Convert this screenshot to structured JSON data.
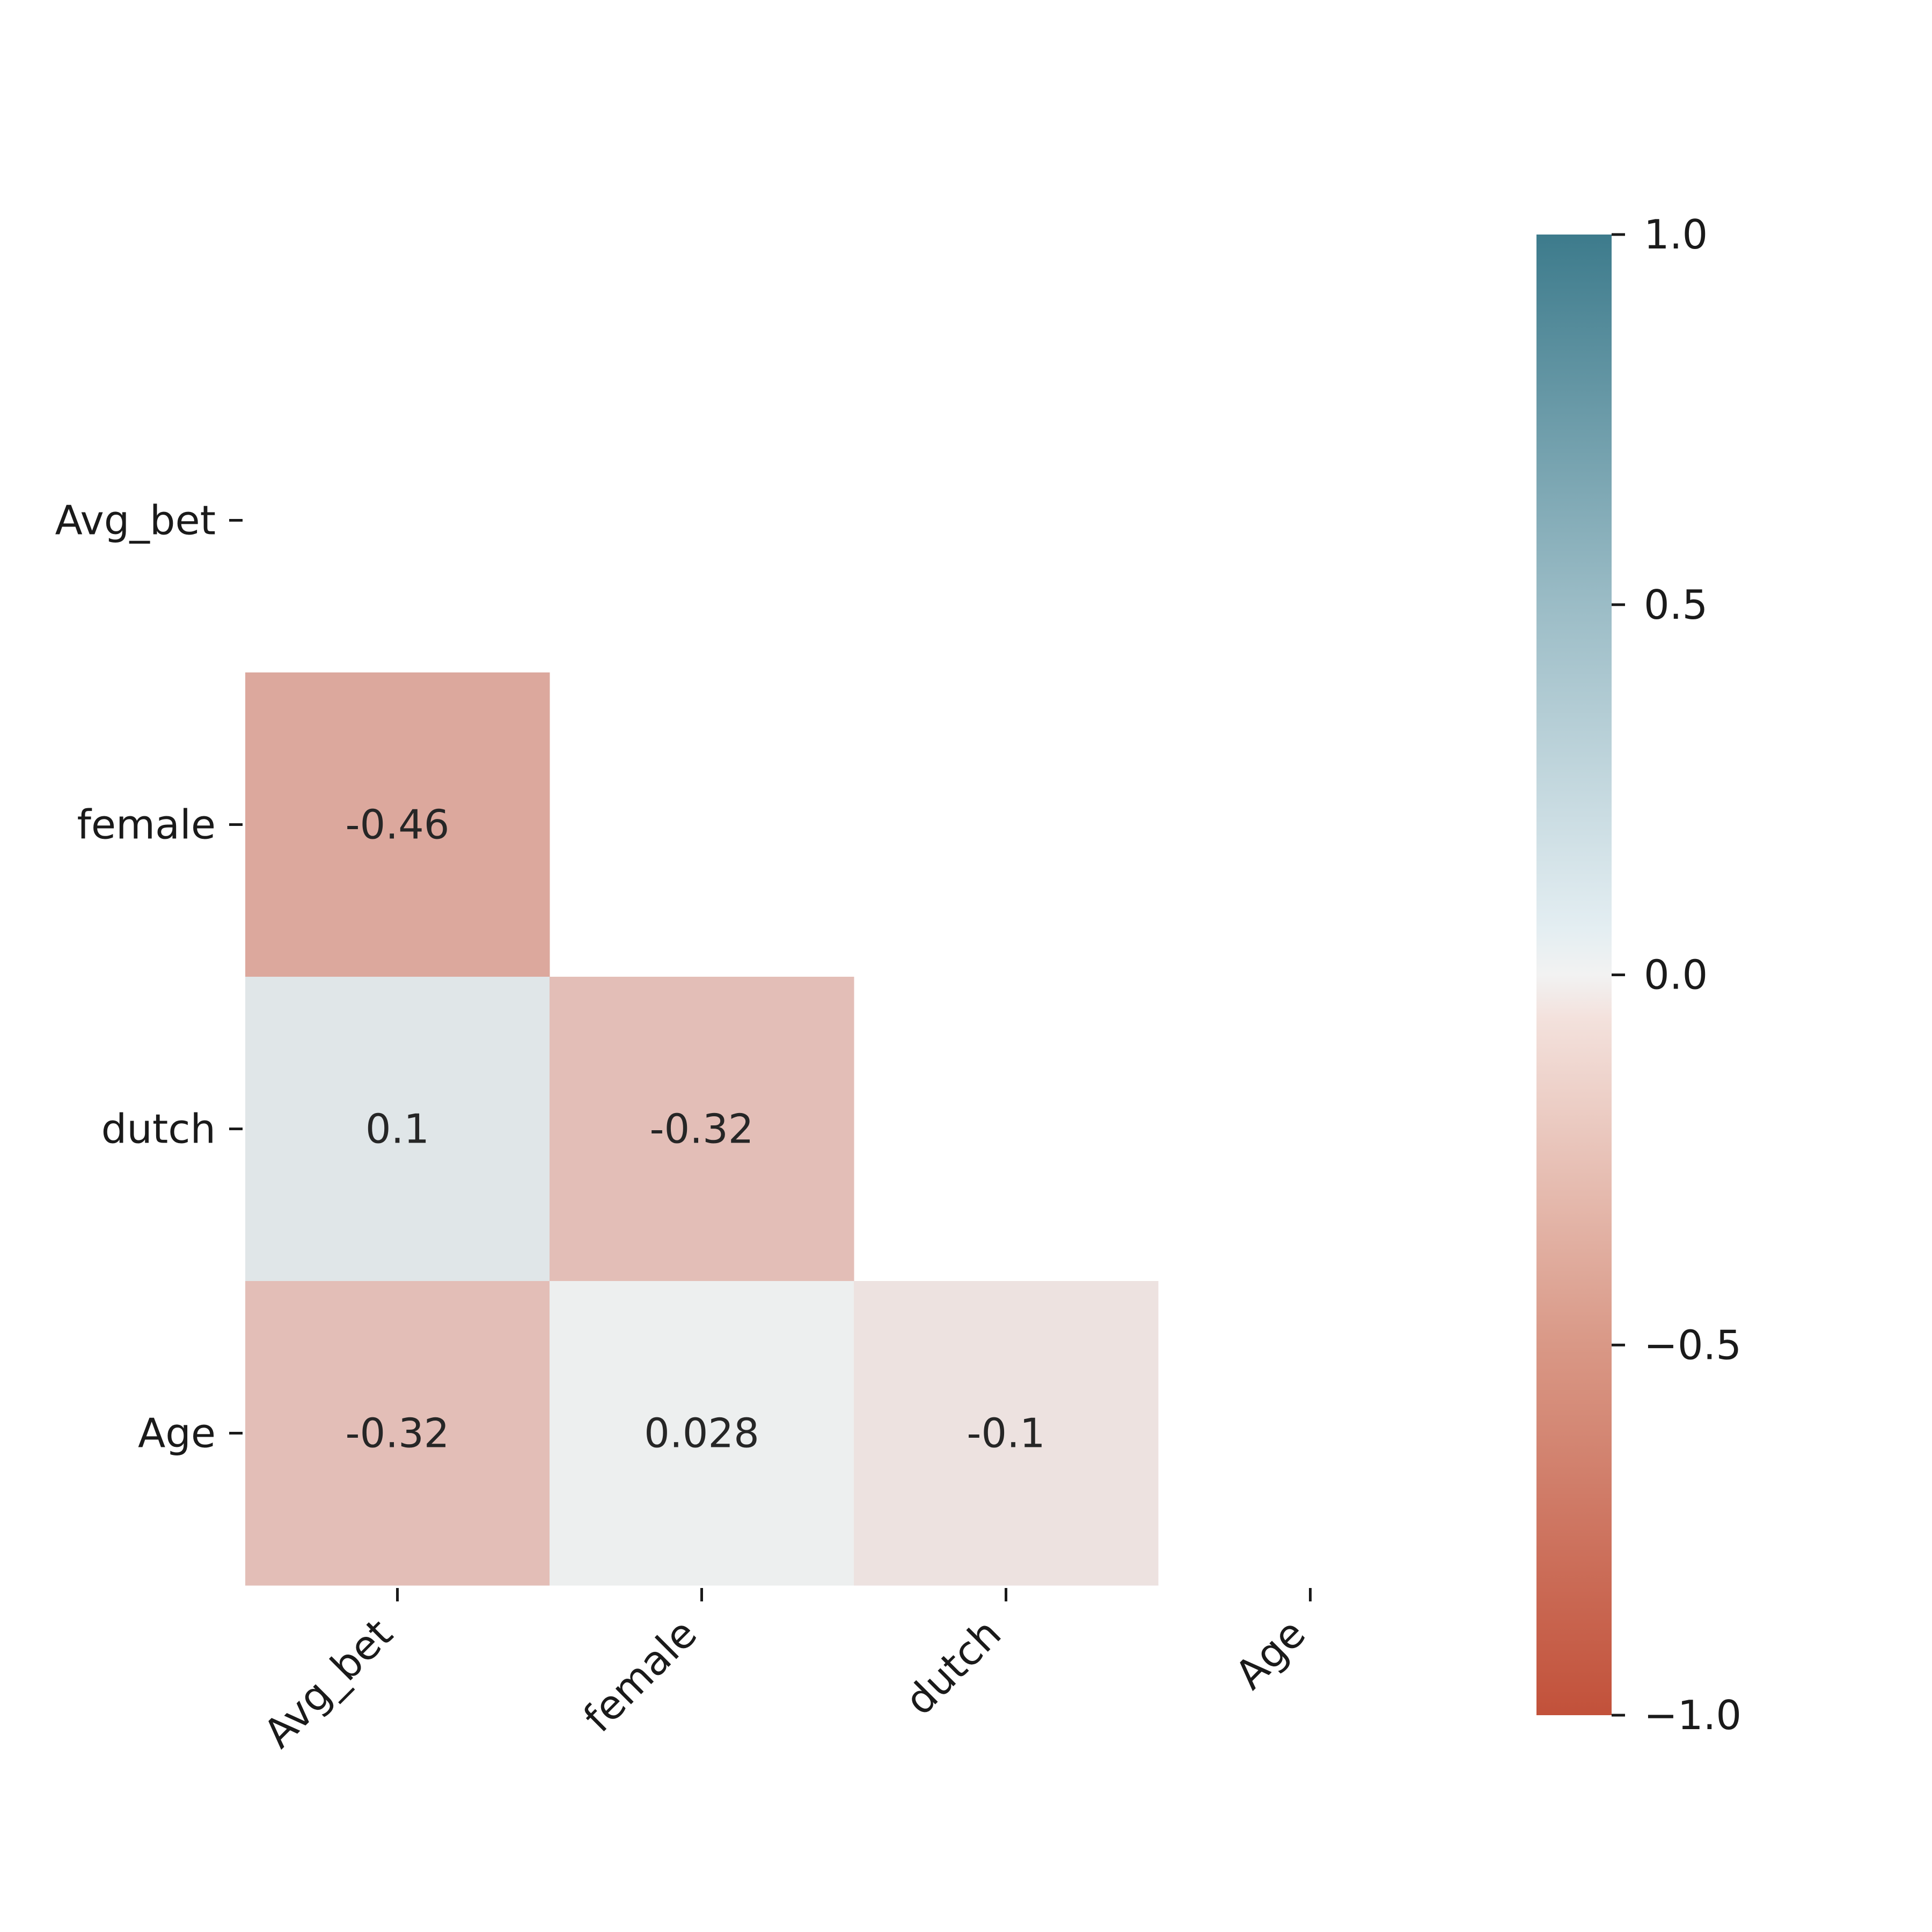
{
  "chart_data": {
    "type": "heatmap",
    "variables": [
      "Avg_bet",
      "female",
      "dutch",
      "Age"
    ],
    "mask": "upper-triangle-including-diagonal",
    "cells": [
      {
        "row": "female",
        "col": "Avg_bet",
        "value": -0.46,
        "label": "-0.46"
      },
      {
        "row": "dutch",
        "col": "Avg_bet",
        "value": 0.1,
        "label": "0.1"
      },
      {
        "row": "dutch",
        "col": "female",
        "value": -0.32,
        "label": "-0.32"
      },
      {
        "row": "Age",
        "col": "Avg_bet",
        "value": -0.32,
        "label": "-0.32"
      },
      {
        "row": "Age",
        "col": "female",
        "value": 0.028,
        "label": "0.028"
      },
      {
        "row": "Age",
        "col": "dutch",
        "value": -0.1,
        "label": "-0.1"
      }
    ],
    "colorbar": {
      "range": [
        -1.0,
        1.0
      ],
      "ticks": [
        1.0,
        0.5,
        0.0,
        -0.5,
        -1.0
      ],
      "tick_labels": [
        "1.0",
        "0.5",
        "0.0",
        "−0.5",
        "−1.0"
      ],
      "colors": {
        "min": "#c2513a",
        "mid": "#f2f2f2",
        "max": "#3d7b8c"
      }
    },
    "title": "",
    "xlabel": "",
    "ylabel": ""
  }
}
